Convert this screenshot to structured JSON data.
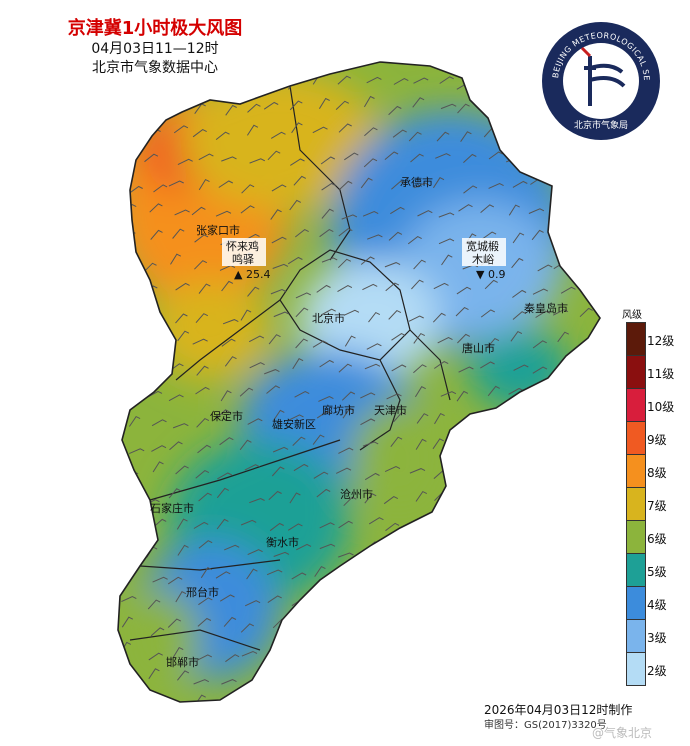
{
  "header": {
    "title": "京津冀1小时极大风图",
    "time": "04月03日11—12时",
    "org": "北京市气象数据中心"
  },
  "logo": {
    "ring_text": "BEIJING METEOROLOGICAL SERVICE",
    "inner_text": "北京市气象局"
  },
  "cities": [
    {
      "id": "zhangjiakou",
      "name": "张家口市"
    },
    {
      "id": "chengde",
      "name": "承德市"
    },
    {
      "id": "beijing",
      "name": "北京市"
    },
    {
      "id": "qinhuangdao",
      "name": "秦皇岛市"
    },
    {
      "id": "tangshan",
      "name": "唐山市"
    },
    {
      "id": "baoding",
      "name": "保定市"
    },
    {
      "id": "langfang",
      "name": "廊坊市"
    },
    {
      "id": "tianjin",
      "name": "天津市"
    },
    {
      "id": "xiongan",
      "name": "雄安新区"
    },
    {
      "id": "cangzhou",
      "name": "沧州市"
    },
    {
      "id": "shijiazhuang",
      "name": "石家庄市"
    },
    {
      "id": "hengshui",
      "name": "衡水市"
    },
    {
      "id": "xingtai",
      "name": "邢台市"
    },
    {
      "id": "handan",
      "name": "邯郸市"
    }
  ],
  "stations": [
    {
      "id": "max",
      "name_line1": "怀来鸡",
      "name_line2": "鸣驿",
      "value": "25.4",
      "marker": "▲"
    },
    {
      "id": "min",
      "name_line1": "宽城椴",
      "name_line2": "木峪",
      "value": "0.9",
      "marker": "▼"
    }
  ],
  "legend": {
    "title": "风级",
    "levels": [
      {
        "label": "12级",
        "color": "#5c1a0a"
      },
      {
        "label": "11级",
        "color": "#8a0f0f"
      },
      {
        "label": "10级",
        "color": "#d81e3c"
      },
      {
        "label": "9级",
        "color": "#f05a22"
      },
      {
        "label": "8级",
        "color": "#f5901e"
      },
      {
        "label": "7级",
        "color": "#d8b41e"
      },
      {
        "label": "6级",
        "color": "#8cb43c"
      },
      {
        "label": "5级",
        "color": "#1ea096"
      },
      {
        "label": "4级",
        "color": "#3c8cdc"
      },
      {
        "label": "3级",
        "color": "#7ab4ec"
      },
      {
        "label": "2级",
        "color": "#b4dcf5"
      }
    ]
  },
  "footer": {
    "made": "2026年04月03日12时制作",
    "approval": "审图号：GS(2017)3320号"
  },
  "watermark": "@气象北京"
}
